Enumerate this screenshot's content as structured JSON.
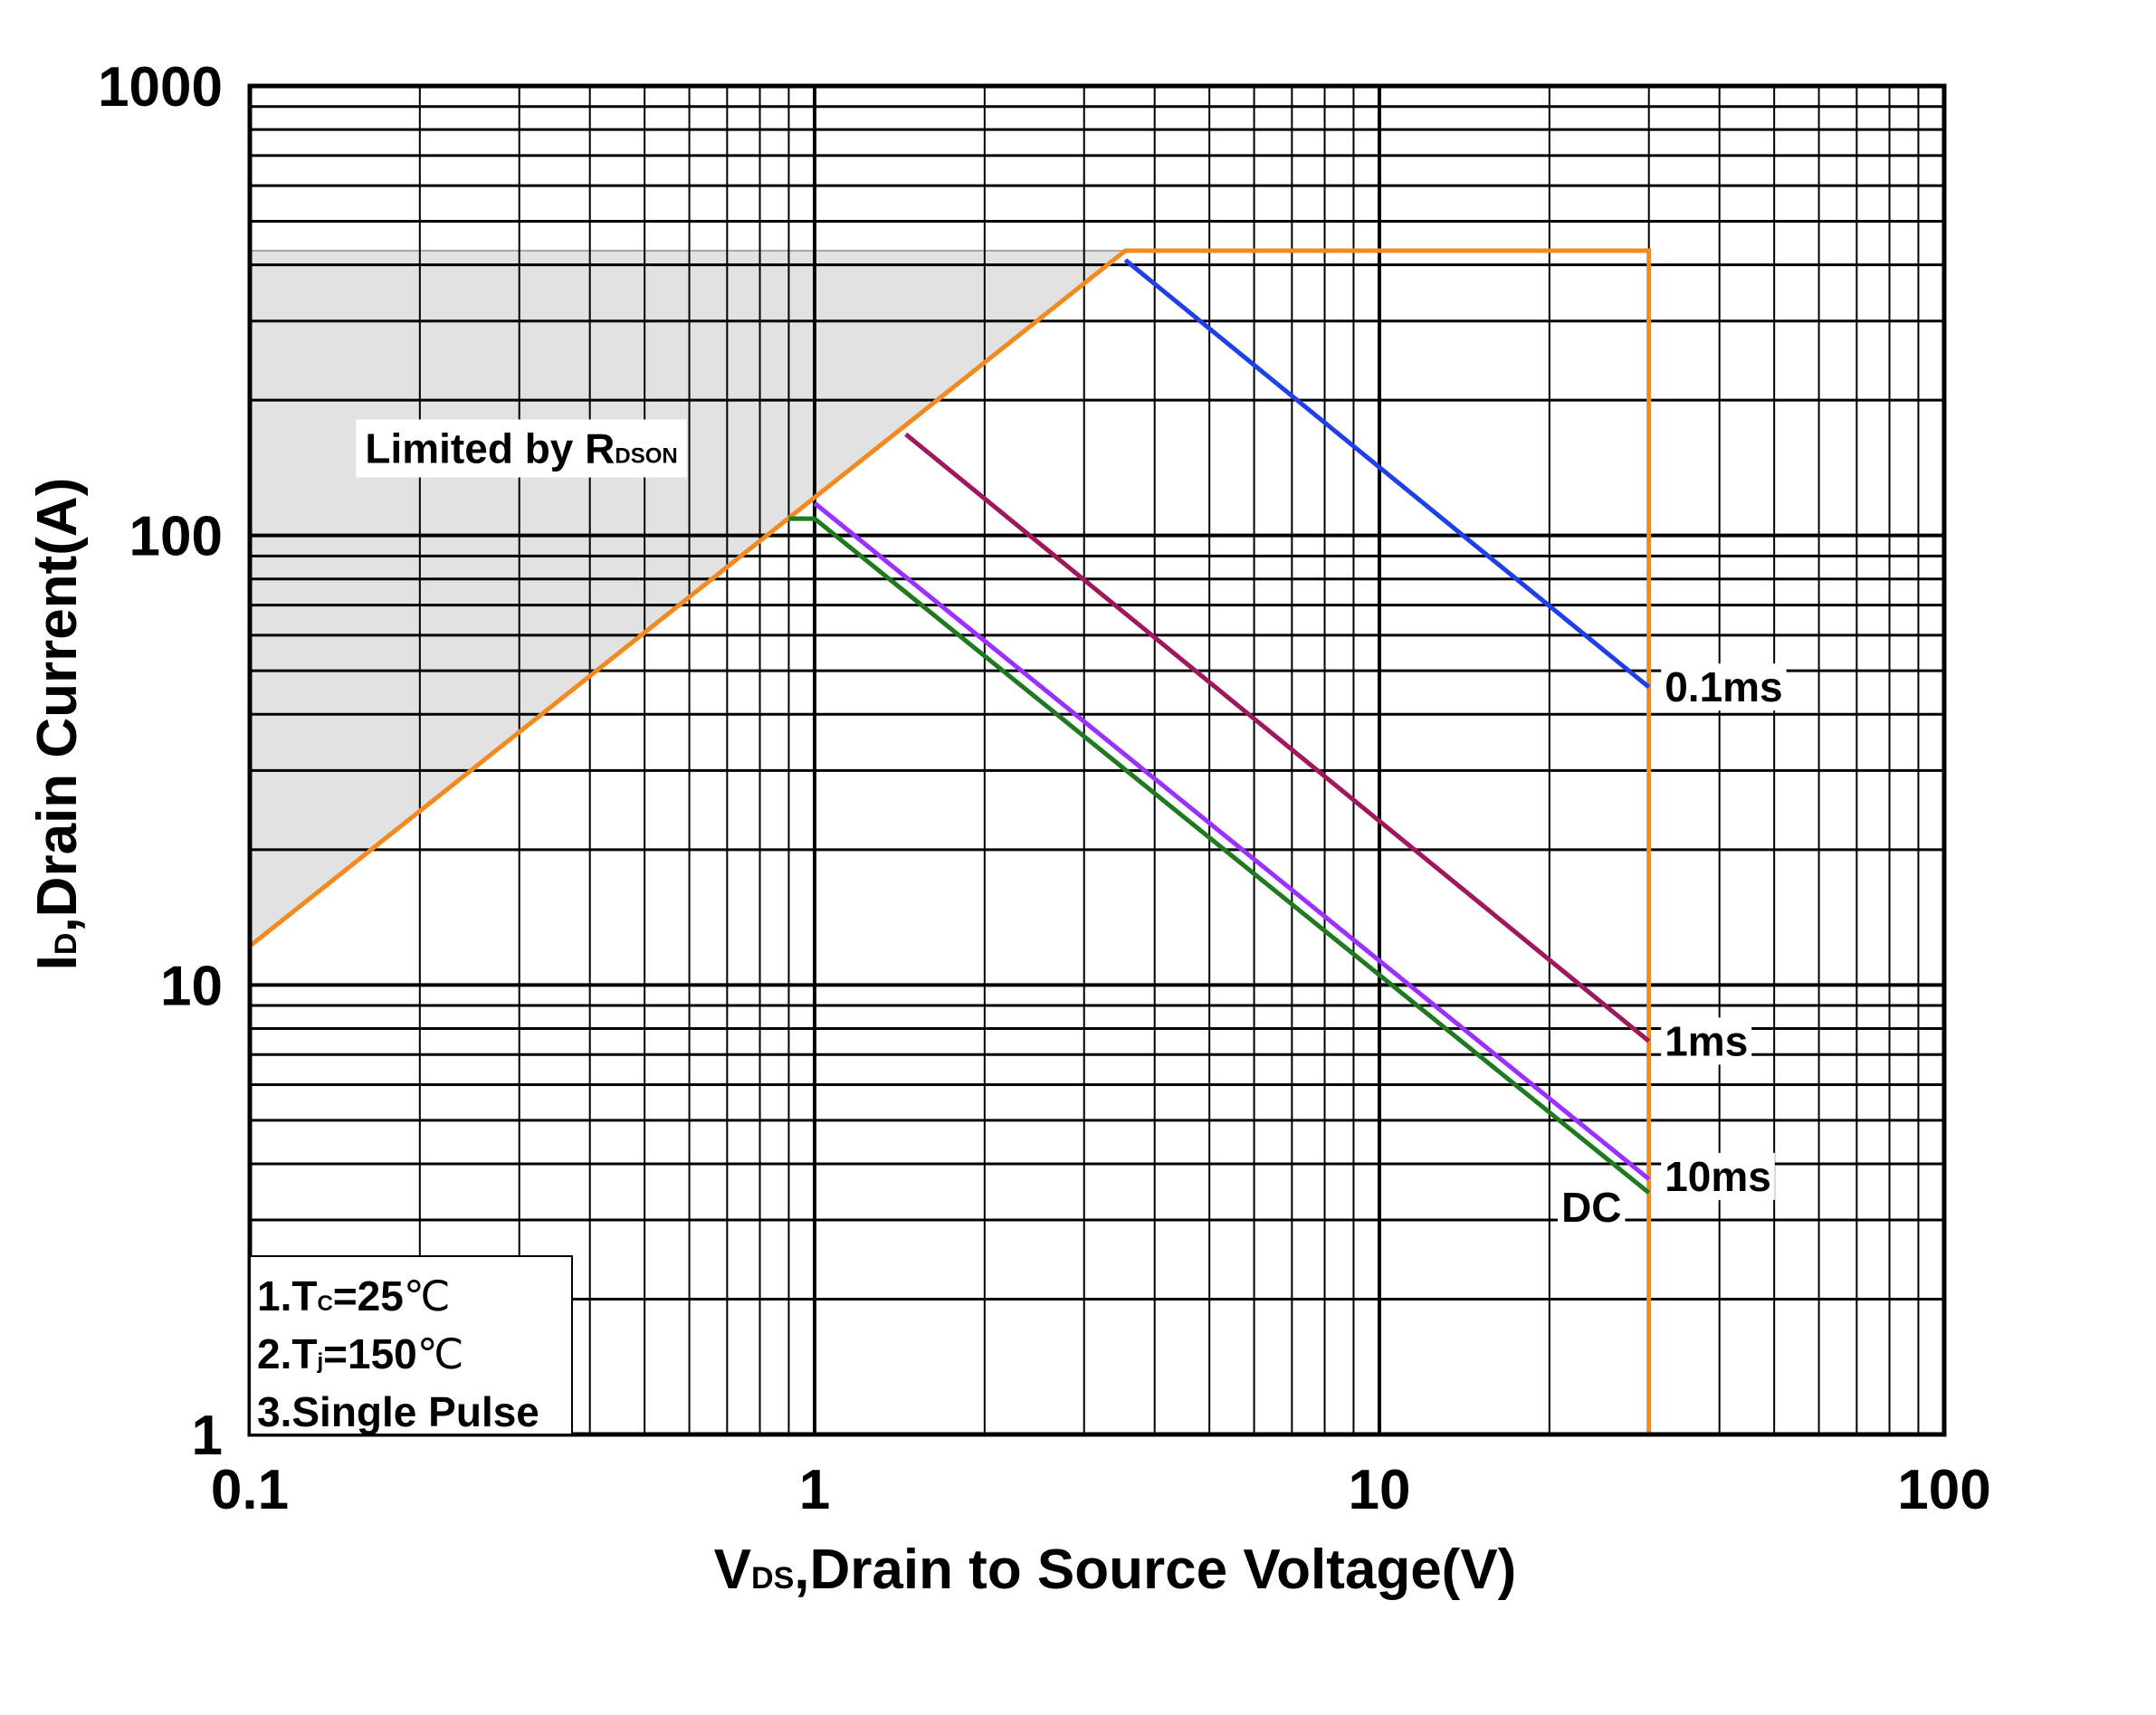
{
  "chart_data": {
    "type": "line",
    "title": "",
    "xscale": "log",
    "yscale": "log",
    "xlim": [
      0.1,
      100
    ],
    "ylim": [
      1,
      1000
    ],
    "grid": true,
    "x_ticks": [
      "0.1",
      "1",
      "10",
      "100"
    ],
    "x_tick_values": [
      0.1,
      1,
      10,
      100
    ],
    "y_ticks": [
      "1",
      "10",
      "100",
      "1000"
    ],
    "y_tick_values": [
      1,
      10,
      100,
      1000
    ],
    "xlabel": {
      "main": "V",
      "sub": "DS",
      "rest": ",Drain to Source Voltage(V)"
    },
    "ylabel": {
      "main": "I",
      "sub": "D",
      "rest": ",Drain Current(A)"
    },
    "region": {
      "label_main": "Limited by R",
      "label_sub": "DSON",
      "color": "#e2e2e2",
      "polygon": [
        [
          0.1,
          12.2
        ],
        [
          3.55,
          430
        ],
        [
          0.1,
          430
        ]
      ],
      "label_anchor": [
        0.16,
        145
      ]
    },
    "series": [
      {
        "name": "Limit boundary",
        "label": "",
        "color": "#f28a1f",
        "points": [
          [
            0.1,
            12.2
          ],
          [
            3.55,
            430
          ],
          [
            30,
            430
          ],
          [
            30,
            1
          ]
        ]
      },
      {
        "name": "0.1ms",
        "label": "0.1ms",
        "color": "#1f3fe8",
        "points": [
          [
            3.55,
            410
          ],
          [
            30,
            46
          ]
        ],
        "label_anchor": [
          32,
          46
        ]
      },
      {
        "name": "1ms",
        "label": "1ms",
        "color": "#a0185c",
        "points": [
          [
            1.45,
            168
          ],
          [
            30,
            7.5
          ]
        ],
        "label_anchor": [
          32,
          7.5
        ]
      },
      {
        "name": "10ms",
        "label": "10ms",
        "color": "#9b30ff",
        "points": [
          [
            1.0,
            118
          ],
          [
            30,
            3.7
          ]
        ],
        "label_anchor": [
          32,
          3.75
        ]
      },
      {
        "name": "DC",
        "label": "DC",
        "color": "#1f7a1f",
        "points": [
          [
            0.9,
            109
          ],
          [
            1.0,
            109
          ],
          [
            30,
            3.45
          ]
        ],
        "label_anchor": [
          21,
          3.2
        ]
      }
    ],
    "notes": {
      "line1": {
        "pre": "1.T",
        "sub": "C",
        "post": "=25",
        "unit": "℃"
      },
      "line2": {
        "pre": "2.T",
        "sub": "j",
        "post": "=150",
        "unit": "℃"
      },
      "line3": {
        "pre": "3.Single Pulse"
      }
    }
  }
}
